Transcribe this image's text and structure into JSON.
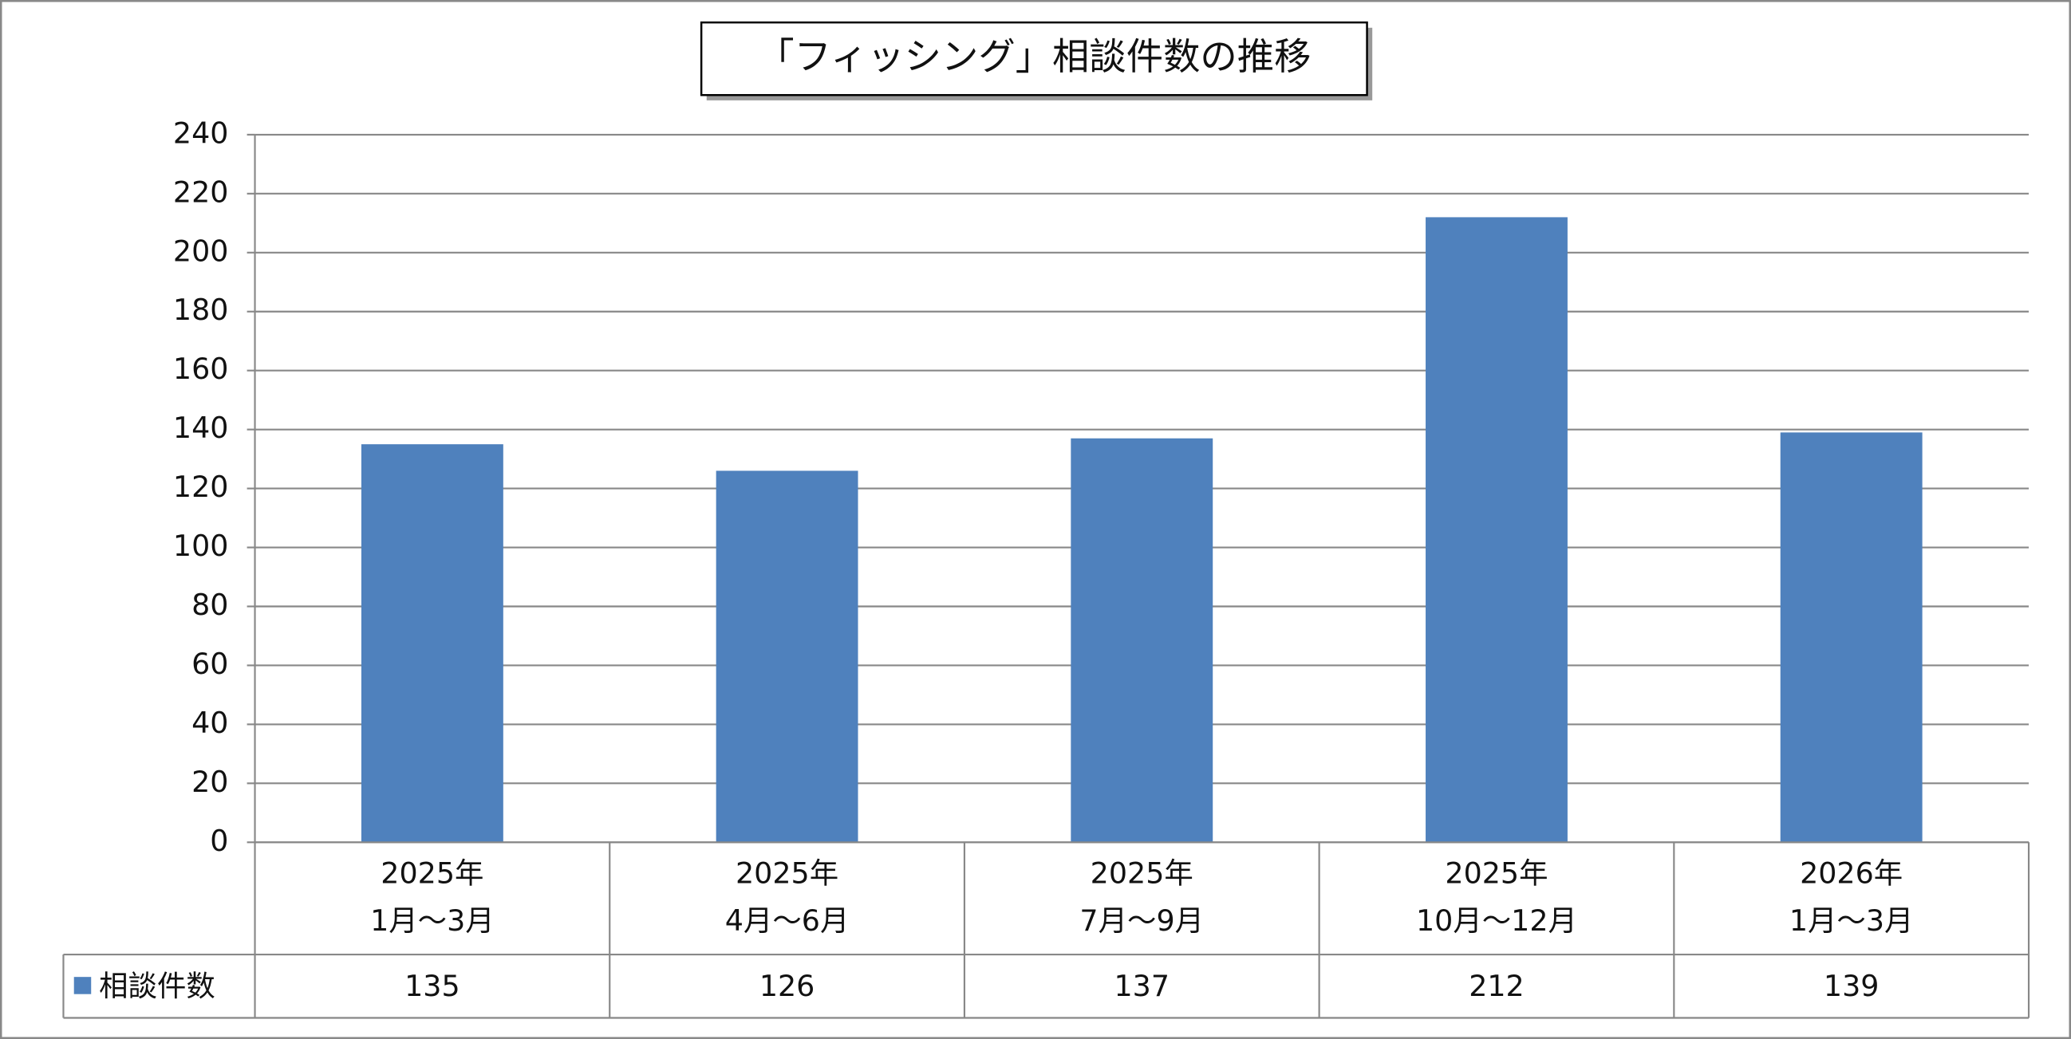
{
  "chart_data": {
    "type": "bar",
    "title": "「フィッシング」相談件数の推移",
    "categories": [
      "2025年\n1月～3月",
      "2025年\n4月～6月",
      "2025年\n7月～9月",
      "2025年\n10月～12月",
      "2026年\n1月～3月"
    ],
    "series": [
      {
        "name": "相談件数",
        "color": "#4f81bd",
        "values": [
          135,
          126,
          137,
          212,
          139
        ]
      }
    ],
    "ylim": [
      0,
      240
    ],
    "yticks": [
      0,
      20,
      40,
      60,
      80,
      100,
      120,
      140,
      160,
      180,
      200,
      220,
      240
    ],
    "grid": true,
    "data_table": true
  }
}
